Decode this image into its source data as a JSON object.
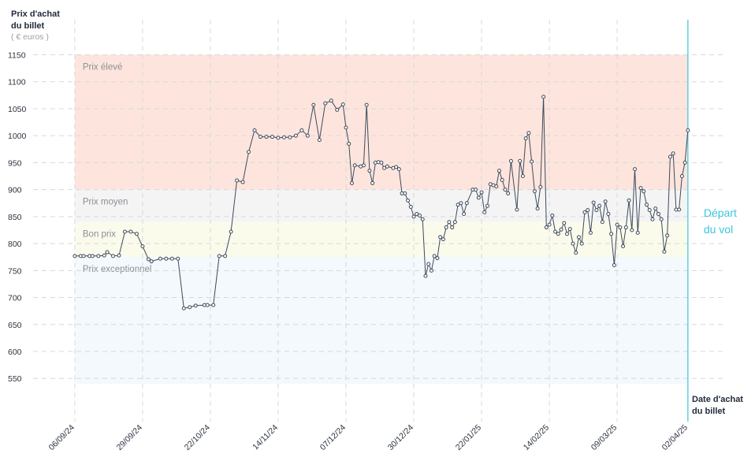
{
  "chart_data": {
    "type": "line",
    "y_title": [
      "Prix d'achat",
      "du billet"
    ],
    "y_unit": "( € euros )",
    "x_title": [
      "Date d'achat",
      "du billet"
    ],
    "ylim": [
      470,
      1215
    ],
    "yticks": [
      550,
      600,
      650,
      700,
      750,
      800,
      850,
      900,
      950,
      1000,
      1050,
      1100,
      1150
    ],
    "xlim": [
      "25/08/24",
      "13/04/25"
    ],
    "xticks": [
      "06/09/24",
      "29/09/24",
      "22/10/24",
      "14/11/24",
      "07/12/24",
      "30/12/24",
      "22/01/25",
      "14/02/25",
      "09/03/25",
      "02/04/25"
    ],
    "grid": true,
    "bands": [
      {
        "name": "Prix élevé",
        "from": 900,
        "to": 1150,
        "color": "#fde5dd"
      },
      {
        "name": "Prix moyen",
        "from": 840,
        "to": 900,
        "color": "#f4f4f4"
      },
      {
        "name": "Bon prix",
        "from": 775,
        "to": 840,
        "color": "#fbfbec"
      },
      {
        "name": "Prix exceptionnel",
        "from": 540,
        "to": 775,
        "color": "#f3f9fc"
      }
    ],
    "departure": {
      "x": "02/04/25",
      "label": [
        "Départ",
        "du vol"
      ],
      "color": "#3cc6de"
    },
    "x": [
      "06/09/24",
      "08/09/24",
      "09/09/24",
      "11/09/24",
      "12/09/24",
      "14/09/24",
      "16/09/24",
      "17/09/24",
      "19/09/24",
      "21/09/24",
      "23/09/24",
      "25/09/24",
      "27/09/24",
      "29/09/24",
      "01/10/24",
      "02/10/24",
      "05/10/24",
      "07/10/24",
      "09/10/24",
      "11/10/24",
      "13/10/24",
      "15/10/24",
      "17/10/24",
      "20/10/24",
      "21/10/24",
      "23/10/24",
      "25/10/24",
      "27/10/24",
      "29/10/24",
      "31/10/24",
      "02/11/24",
      "04/11/24",
      "06/11/24",
      "08/11/24",
      "10/11/24",
      "12/11/24",
      "14/11/24",
      "16/11/24",
      "18/11/24",
      "20/11/24",
      "22/11/24",
      "24/11/24",
      "26/11/24",
      "28/11/24",
      "30/11/24",
      "02/12/24",
      "04/12/24",
      "06/12/24",
      "07/12/24",
      "08/12/24",
      "09/12/24",
      "10/12/24",
      "12/12/24",
      "13/12/24",
      "14/12/24",
      "15/12/24",
      "16/12/24",
      "17/12/24",
      "18/12/24",
      "19/12/24",
      "20/12/24",
      "21/12/24",
      "23/12/24",
      "24/12/24",
      "25/12/24",
      "26/12/24",
      "27/12/24",
      "28/12/24",
      "29/12/24",
      "30/12/24",
      "31/12/24",
      "01/01/25",
      "02/01/25",
      "03/01/25",
      "04/01/25",
      "05/01/25",
      "06/01/25",
      "07/01/25",
      "08/01/25",
      "09/01/25",
      "10/01/25",
      "11/01/25",
      "12/01/25",
      "13/01/25",
      "14/01/25",
      "15/01/25",
      "16/01/25",
      "17/01/25",
      "19/01/25",
      "20/01/25",
      "21/01/25",
      "22/01/25",
      "23/01/25",
      "24/01/25",
      "25/01/25",
      "26/01/25",
      "27/01/25",
      "28/01/25",
      "29/01/25",
      "30/01/25",
      "31/01/25",
      "01/02/25",
      "03/02/25",
      "04/02/25",
      "05/02/25",
      "06/02/25",
      "07/02/25",
      "08/02/25",
      "09/02/25",
      "10/02/25",
      "11/02/25",
      "12/02/25",
      "13/02/25",
      "14/02/25",
      "15/02/25",
      "16/02/25",
      "17/02/25",
      "18/02/25",
      "19/02/25",
      "20/02/25",
      "21/02/25",
      "22/02/25",
      "23/02/25",
      "24/02/25",
      "25/02/25",
      "26/02/25",
      "27/02/25",
      "28/02/25",
      "01/03/25",
      "02/03/25",
      "03/03/25",
      "04/03/25",
      "05/03/25",
      "06/03/25",
      "07/03/25",
      "08/03/25",
      "09/03/25",
      "10/03/25",
      "11/03/25",
      "12/03/25",
      "13/03/25",
      "14/03/25",
      "15/03/25",
      "16/03/25",
      "17/03/25",
      "18/03/25",
      "19/03/25",
      "20/03/25",
      "21/03/25",
      "22/03/25",
      "23/03/25",
      "24/03/25",
      "25/03/25",
      "26/03/25",
      "27/03/25",
      "28/03/25",
      "29/03/25",
      "30/03/25",
      "31/03/25",
      "01/04/25",
      "02/04/25"
    ],
    "series": [
      {
        "color": "#3d4a5c",
        "values": [
          777,
          777,
          777,
          777,
          777,
          777,
          778,
          784,
          777,
          778,
          822,
          822,
          818,
          795,
          771,
          767,
          772,
          772,
          772,
          772,
          680,
          682,
          685,
          686,
          686,
          686,
          777,
          777,
          822,
          917,
          914,
          970,
          1010,
          998,
          998,
          998,
          996,
          997,
          997,
          1000,
          1010,
          1000,
          1057,
          992,
          1060,
          1065,
          1048,
          1058,
          1015,
          985,
          912,
          945,
          943,
          945,
          1057,
          935,
          912,
          950,
          951,
          950,
          940,
          943,
          940,
          942,
          938,
          893,
          893,
          880,
          868,
          850,
          855,
          852,
          845,
          740,
          762,
          750,
          777,
          773,
          812,
          808,
          830,
          840,
          830,
          840,
          872,
          875,
          855,
          875,
          900,
          900,
          885,
          895,
          858,
          870,
          910,
          908,
          906,
          935,
          918,
          900,
          893,
          953,
          863,
          953,
          925,
          995,
          1005,
          952,
          897,
          865,
          905,
          1072,
          830,
          835,
          852,
          822,
          818,
          826,
          838,
          818,
          827,
          800,
          783,
          812,
          800,
          858,
          862,
          820,
          876,
          862,
          870,
          840,
          878,
          855,
          818,
          760,
          835,
          830,
          795,
          830,
          880,
          825,
          938,
          820,
          903,
          897,
          872,
          862,
          845,
          865,
          855,
          845,
          785,
          815,
          961,
          967,
          863,
          863,
          925,
          950,
          1010
        ]
      }
    ]
  }
}
